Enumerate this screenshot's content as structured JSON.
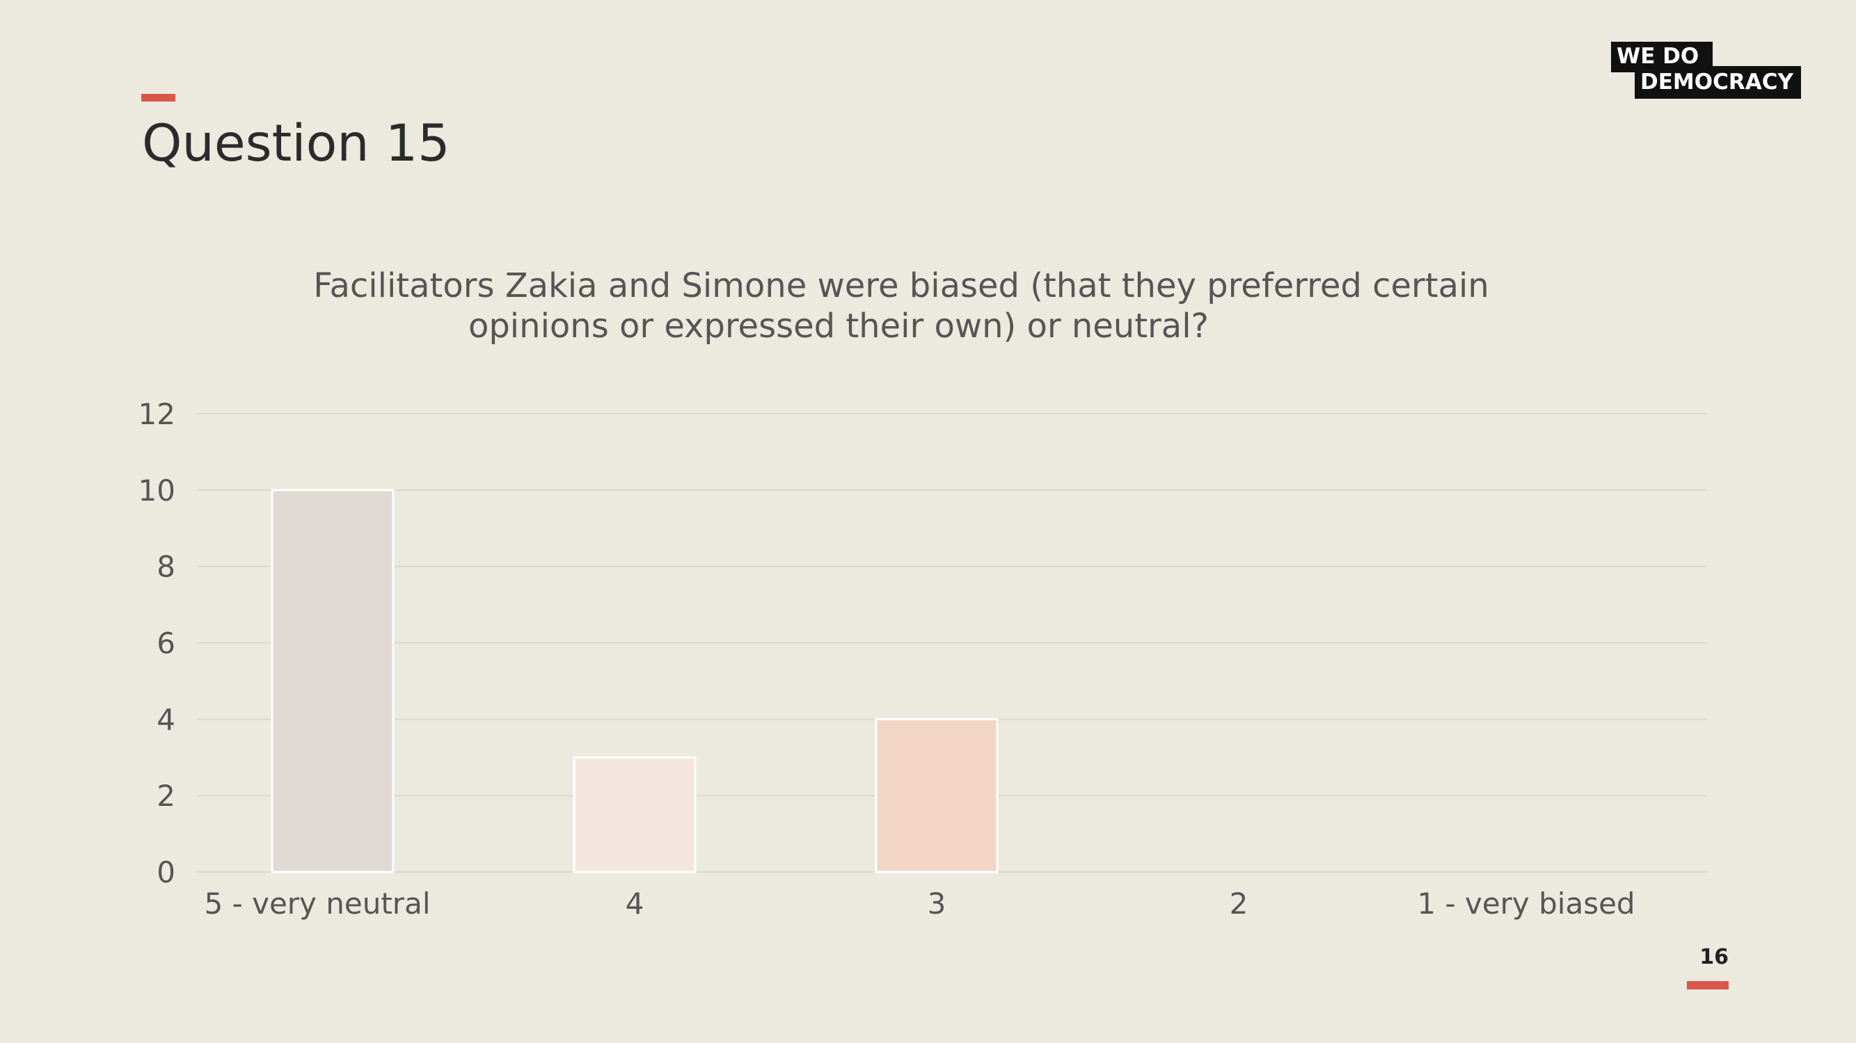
{
  "slide": {
    "title": "Question 15",
    "page_number": "16"
  },
  "logo": {
    "line1": "WE  DO",
    "line2": "DEMOCRACY"
  },
  "colors": {
    "background": "#ECE9DF",
    "accent": "#D9574A",
    "grid": "#DCD8D0",
    "text": "#555555"
  },
  "chart_data": {
    "type": "bar",
    "title_lines": [
      "Facilitators Zakia and Simone were biased (that they preferred certain",
      "opinions or expressed their own) or neutral?"
    ],
    "categories": [
      "5 - very neutral",
      "4",
      "3",
      "2",
      "1 - very biased"
    ],
    "values": [
      10,
      3,
      4,
      0,
      0
    ],
    "bar_colors": [
      "#E1D9D4",
      "#F4E6DF",
      "#F3D5C5",
      "#F3D5C5",
      "#F3D5C5"
    ],
    "ylim": [
      0,
      12
    ],
    "yticks": [
      0,
      2,
      4,
      6,
      8,
      10,
      12
    ],
    "grid": true,
    "legend": "none"
  }
}
